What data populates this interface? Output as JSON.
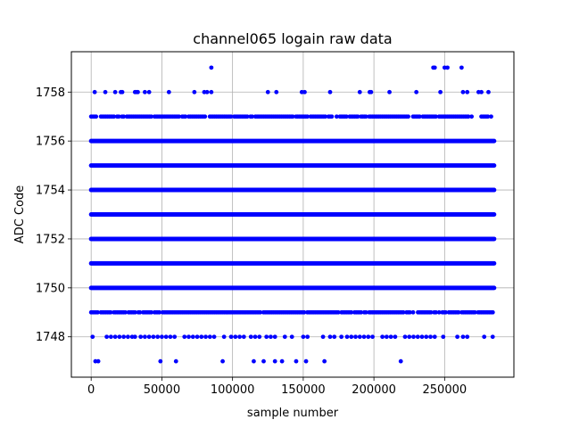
{
  "chart_data": {
    "type": "scatter",
    "title": "channel065 logain raw data",
    "xlabel": "sample number",
    "ylabel": "ADC Code",
    "xlim": [
      -14000,
      299000
    ],
    "ylim": [
      1746.35,
      1759.65
    ],
    "xticks": [
      0,
      50000,
      100000,
      150000,
      200000,
      250000
    ],
    "yticks": [
      1748,
      1750,
      1752,
      1754,
      1756,
      1758
    ],
    "grid": true,
    "marker_color": "#0000ff",
    "series": [
      {
        "dense_levels": [
          {
            "y": 1750,
            "x_range": [
              0,
              285000
            ]
          },
          {
            "y": 1751,
            "x_range": [
              0,
              285000
            ]
          },
          {
            "y": 1752,
            "x_range": [
              0,
              285000
            ]
          },
          {
            "y": 1753,
            "x_range": [
              0,
              285000
            ]
          },
          {
            "y": 1754,
            "x_range": [
              0,
              285000
            ]
          },
          {
            "y": 1755,
            "x_range": [
              0,
              285000
            ]
          },
          {
            "y": 1756,
            "x_range": [
              0,
              285000
            ]
          }
        ],
        "semi_dense_levels": [
          {
            "y": 1749,
            "x_range": [
              0,
              285000
            ]
          },
          {
            "y": 1757,
            "x_range": [
              0,
              285000
            ]
          }
        ],
        "points": [
          {
            "x": 85000,
            "y": 1759
          },
          {
            "x": 242000,
            "y": 1759
          },
          {
            "x": 243000,
            "y": 1759
          },
          {
            "x": 250000,
            "y": 1759
          },
          {
            "x": 252000,
            "y": 1759
          },
          {
            "x": 262000,
            "y": 1759
          },
          {
            "x": 2500,
            "y": 1758
          },
          {
            "x": 10000,
            "y": 1758
          },
          {
            "x": 17000,
            "y": 1758
          },
          {
            "x": 21000,
            "y": 1758
          },
          {
            "x": 22000,
            "y": 1758
          },
          {
            "x": 31000,
            "y": 1758
          },
          {
            "x": 32000,
            "y": 1758
          },
          {
            "x": 33000,
            "y": 1758
          },
          {
            "x": 38000,
            "y": 1758
          },
          {
            "x": 41000,
            "y": 1758
          },
          {
            "x": 55000,
            "y": 1758
          },
          {
            "x": 73000,
            "y": 1758
          },
          {
            "x": 80000,
            "y": 1758
          },
          {
            "x": 82000,
            "y": 1758
          },
          {
            "x": 85000,
            "y": 1758
          },
          {
            "x": 125000,
            "y": 1758
          },
          {
            "x": 131000,
            "y": 1758
          },
          {
            "x": 149000,
            "y": 1758
          },
          {
            "x": 151000,
            "y": 1758
          },
          {
            "x": 169000,
            "y": 1758
          },
          {
            "x": 190000,
            "y": 1758
          },
          {
            "x": 197000,
            "y": 1758
          },
          {
            "x": 198000,
            "y": 1758
          },
          {
            "x": 211000,
            "y": 1758
          },
          {
            "x": 230000,
            "y": 1758
          },
          {
            "x": 247000,
            "y": 1758
          },
          {
            "x": 263000,
            "y": 1758
          },
          {
            "x": 266000,
            "y": 1758
          },
          {
            "x": 274000,
            "y": 1758
          },
          {
            "x": 276000,
            "y": 1758
          },
          {
            "x": 281000,
            "y": 1758
          },
          {
            "x": 1000,
            "y": 1748
          },
          {
            "x": 11000,
            "y": 1748
          },
          {
            "x": 14000,
            "y": 1748
          },
          {
            "x": 17000,
            "y": 1748
          },
          {
            "x": 20000,
            "y": 1748
          },
          {
            "x": 23000,
            "y": 1748
          },
          {
            "x": 26000,
            "y": 1748
          },
          {
            "x": 29000,
            "y": 1748
          },
          {
            "x": 31000,
            "y": 1748
          },
          {
            "x": 35000,
            "y": 1748
          },
          {
            "x": 38000,
            "y": 1748
          },
          {
            "x": 41000,
            "y": 1748
          },
          {
            "x": 44000,
            "y": 1748
          },
          {
            "x": 47000,
            "y": 1748
          },
          {
            "x": 50000,
            "y": 1748
          },
          {
            "x": 53000,
            "y": 1748
          },
          {
            "x": 56000,
            "y": 1748
          },
          {
            "x": 59000,
            "y": 1748
          },
          {
            "x": 66000,
            "y": 1748
          },
          {
            "x": 69000,
            "y": 1748
          },
          {
            "x": 72000,
            "y": 1748
          },
          {
            "x": 75000,
            "y": 1748
          },
          {
            "x": 78000,
            "y": 1748
          },
          {
            "x": 81000,
            "y": 1748
          },
          {
            "x": 84000,
            "y": 1748
          },
          {
            "x": 87000,
            "y": 1748
          },
          {
            "x": 94000,
            "y": 1748
          },
          {
            "x": 99000,
            "y": 1748
          },
          {
            "x": 102000,
            "y": 1748
          },
          {
            "x": 105000,
            "y": 1748
          },
          {
            "x": 108000,
            "y": 1748
          },
          {
            "x": 113000,
            "y": 1748
          },
          {
            "x": 116000,
            "y": 1748
          },
          {
            "x": 119000,
            "y": 1748
          },
          {
            "x": 124000,
            "y": 1748
          },
          {
            "x": 127000,
            "y": 1748
          },
          {
            "x": 130000,
            "y": 1748
          },
          {
            "x": 137000,
            "y": 1748
          },
          {
            "x": 142000,
            "y": 1748
          },
          {
            "x": 150000,
            "y": 1748
          },
          {
            "x": 153000,
            "y": 1748
          },
          {
            "x": 164000,
            "y": 1748
          },
          {
            "x": 169000,
            "y": 1748
          },
          {
            "x": 172000,
            "y": 1748
          },
          {
            "x": 177000,
            "y": 1748
          },
          {
            "x": 181000,
            "y": 1748
          },
          {
            "x": 184000,
            "y": 1748
          },
          {
            "x": 187000,
            "y": 1748
          },
          {
            "x": 190000,
            "y": 1748
          },
          {
            "x": 193000,
            "y": 1748
          },
          {
            "x": 196000,
            "y": 1748
          },
          {
            "x": 199000,
            "y": 1748
          },
          {
            "x": 206000,
            "y": 1748
          },
          {
            "x": 209000,
            "y": 1748
          },
          {
            "x": 212000,
            "y": 1748
          },
          {
            "x": 215000,
            "y": 1748
          },
          {
            "x": 222000,
            "y": 1748
          },
          {
            "x": 225000,
            "y": 1748
          },
          {
            "x": 228000,
            "y": 1748
          },
          {
            "x": 231000,
            "y": 1748
          },
          {
            "x": 234000,
            "y": 1748
          },
          {
            "x": 237000,
            "y": 1748
          },
          {
            "x": 240000,
            "y": 1748
          },
          {
            "x": 243000,
            "y": 1748
          },
          {
            "x": 249000,
            "y": 1748
          },
          {
            "x": 259000,
            "y": 1748
          },
          {
            "x": 263000,
            "y": 1748
          },
          {
            "x": 266000,
            "y": 1748
          },
          {
            "x": 278000,
            "y": 1748
          },
          {
            "x": 284000,
            "y": 1748
          },
          {
            "x": 3000,
            "y": 1747
          },
          {
            "x": 5000,
            "y": 1747
          },
          {
            "x": 49000,
            "y": 1747
          },
          {
            "x": 60000,
            "y": 1747
          },
          {
            "x": 93000,
            "y": 1747
          },
          {
            "x": 115000,
            "y": 1747
          },
          {
            "x": 122000,
            "y": 1747
          },
          {
            "x": 130000,
            "y": 1747
          },
          {
            "x": 135000,
            "y": 1747
          },
          {
            "x": 145000,
            "y": 1747
          },
          {
            "x": 152000,
            "y": 1747
          },
          {
            "x": 165000,
            "y": 1747
          },
          {
            "x": 219000,
            "y": 1747
          }
        ]
      }
    ]
  }
}
